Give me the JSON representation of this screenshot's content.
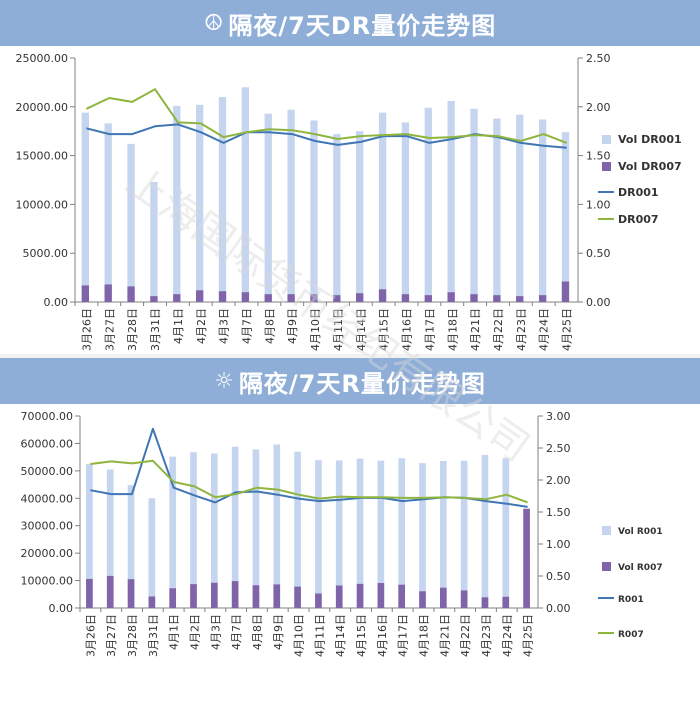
{
  "header1": {
    "icon": "☮",
    "title": "隔夜/7天DR量价走势图"
  },
  "header2": {
    "icon": "☼",
    "title": "隔夜/7天R量价走势图"
  },
  "watermark": {
    "text": "上海国际货币经纪有限公司"
  },
  "chart_data": [
    {
      "type": "bar+line",
      "title": "隔夜/7天DR量价走势图",
      "categories": [
        "3月26日",
        "3月27日",
        "3月28日",
        "3月31日",
        "4月1日",
        "4月2日",
        "4月3日",
        "4月7日",
        "4月8日",
        "4月9日",
        "4月10日",
        "4月11日",
        "4月14日",
        "4月15日",
        "4月16日",
        "4月17日",
        "4月18日",
        "4月21日",
        "4月22日",
        "4月23日",
        "4月24日",
        "4月25日"
      ],
      "ylim_left": [
        0,
        25000
      ],
      "ylim_right": [
        0,
        2.5
      ],
      "yticks_left": [
        "0.00",
        "5000.00",
        "10000.00",
        "15000.00",
        "20000.00",
        "25000.00"
      ],
      "yticks_right": [
        "0.00",
        "0.50",
        "1.00",
        "1.50",
        "2.00",
        "2.50"
      ],
      "legend_position": "right",
      "bar_series": [
        {
          "name": "Vol DR001",
          "color": "#c5d5ef",
          "values": [
            19400,
            18300,
            16200,
            12300,
            20100,
            20200,
            21000,
            22000,
            19300,
            19700,
            18600,
            17200,
            17500,
            19400,
            18400,
            19900,
            20600,
            19800,
            18800,
            19200,
            18700,
            17400
          ]
        },
        {
          "name": "Vol DR007",
          "color": "#7f64aa",
          "values": [
            1700,
            1800,
            1600,
            600,
            800,
            1200,
            1100,
            1000,
            800,
            800,
            800,
            700,
            900,
            1300,
            800,
            700,
            1000,
            800,
            700,
            600,
            700,
            2100
          ]
        }
      ],
      "line_series": [
        {
          "name": "DR001",
          "color": "#3f76b3",
          "values": [
            1.78,
            1.72,
            1.72,
            1.8,
            1.82,
            1.74,
            1.63,
            1.74,
            1.74,
            1.72,
            1.65,
            1.61,
            1.64,
            1.7,
            1.7,
            1.63,
            1.67,
            1.72,
            1.69,
            1.63,
            1.6,
            1.58
          ]
        },
        {
          "name": "DR007",
          "color": "#8fb53e",
          "values": [
            1.98,
            2.09,
            2.05,
            2.18,
            1.84,
            1.83,
            1.69,
            1.74,
            1.77,
            1.76,
            1.72,
            1.67,
            1.7,
            1.71,
            1.72,
            1.68,
            1.69,
            1.71,
            1.7,
            1.65,
            1.72,
            1.63
          ]
        }
      ]
    },
    {
      "type": "bar+line",
      "title": "隔夜/7天R量价走势图",
      "categories": [
        "3月26日",
        "3月27日",
        "3月28日",
        "3月31日",
        "4月1日",
        "4月2日",
        "4月3日",
        "4月7日",
        "4月8日",
        "4月9日",
        "4月10日",
        "4月11日",
        "4月14日",
        "4月15日",
        "4月16日",
        "4月17日",
        "4月18日",
        "4月21日",
        "4月22日",
        "4月23日",
        "4月24日",
        "4月25日"
      ],
      "ylim_left": [
        0,
        70000
      ],
      "ylim_right": [
        0,
        3.0
      ],
      "yticks_left": [
        "0.00",
        "10000.00",
        "20000.00",
        "30000.00",
        "40000.00",
        "50000.00",
        "60000.00",
        "70000.00"
      ],
      "yticks_right": [
        "0.00",
        "0.50",
        "1.00",
        "1.50",
        "2.00",
        "2.50",
        "3.00"
      ],
      "legend_position": "right",
      "bar_series": [
        {
          "name": "Vol R001",
          "color": "#c5d5ef",
          "values": [
            52500,
            50500,
            44800,
            40000,
            55200,
            56800,
            56300,
            58800,
            57800,
            59600,
            57000,
            53900,
            53800,
            54500,
            53700,
            54600,
            52800,
            53600,
            53700,
            55800,
            54600,
            19800
          ]
        },
        {
          "name": "Vol R007",
          "color": "#7f64aa",
          "values": [
            10600,
            11700,
            10500,
            4200,
            7200,
            8700,
            9200,
            9800,
            8300,
            8600,
            7800,
            5300,
            8200,
            8800,
            9100,
            8500,
            6100,
            7400,
            6400,
            3900,
            4100,
            36200
          ]
        }
      ],
      "line_series": [
        {
          "name": "R001",
          "color": "#3f76b3",
          "values": [
            1.84,
            1.78,
            1.78,
            2.8,
            1.88,
            1.76,
            1.65,
            1.81,
            1.82,
            1.77,
            1.71,
            1.67,
            1.69,
            1.72,
            1.72,
            1.67,
            1.7,
            1.73,
            1.72,
            1.67,
            1.63,
            1.58
          ]
        },
        {
          "name": "R007",
          "color": "#8fb53e",
          "values": [
            2.25,
            2.29,
            2.26,
            2.3,
            1.97,
            1.9,
            1.73,
            1.78,
            1.88,
            1.85,
            1.77,
            1.71,
            1.74,
            1.73,
            1.73,
            1.72,
            1.72,
            1.73,
            1.72,
            1.7,
            1.77,
            1.65
          ]
        }
      ]
    }
  ]
}
